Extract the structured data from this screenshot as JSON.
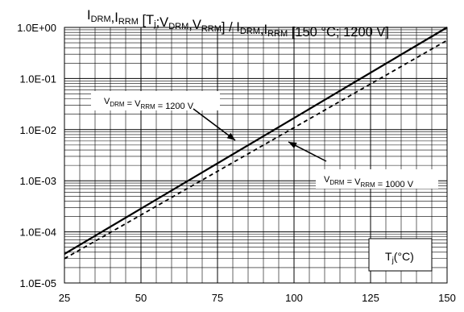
{
  "chart_data": {
    "type": "line",
    "title_parts": [
      {
        "t": "I",
        "sub": "DRM"
      },
      {
        "t": ",I",
        "sub": "RRM"
      },
      {
        "t": " [T",
        "sub": "j"
      },
      {
        "t": ";V",
        "sub": "DRM"
      },
      {
        "t": ",V",
        "sub": "RRM"
      },
      {
        "t": "] / I",
        "sub": "DRM"
      },
      {
        "t": ",I",
        "sub": "RRM"
      },
      {
        "t": " [150 °C; 1200 V]",
        "sub": ""
      }
    ],
    "x_ticks": [
      25,
      50,
      75,
      100,
      125,
      150
    ],
    "xlim": [
      25,
      150
    ],
    "ylim": [
      1e-05,
      1
    ],
    "y_scale": "log",
    "y_tick_labels": [
      "1.0E+00",
      "1.0E-01",
      "1.0E-02",
      "1.0E-03",
      "1.0E-04",
      "1.0E-05"
    ],
    "grid": true,
    "xlabel": {
      "main": "T",
      "sub": "j",
      "suffix": "(°C)"
    },
    "series": [
      {
        "style": "solid",
        "x": [
          25,
          150
        ],
        "y": [
          3.7e-05,
          1.0
        ],
        "label": [
          {
            "t": "V",
            "sub": "DRM"
          },
          {
            "t": " = V",
            "sub": "RRM"
          },
          {
            "t": " = 1200 V",
            "sub": ""
          }
        ]
      },
      {
        "style": "dashed",
        "x": [
          25,
          150
        ],
        "y": [
          3e-05,
          0.56
        ],
        "label": [
          {
            "t": "V",
            "sub": "DRM"
          },
          {
            "t": " = V",
            "sub": "RRM"
          },
          {
            "t": " = 1000 V",
            "sub": ""
          }
        ]
      }
    ]
  }
}
